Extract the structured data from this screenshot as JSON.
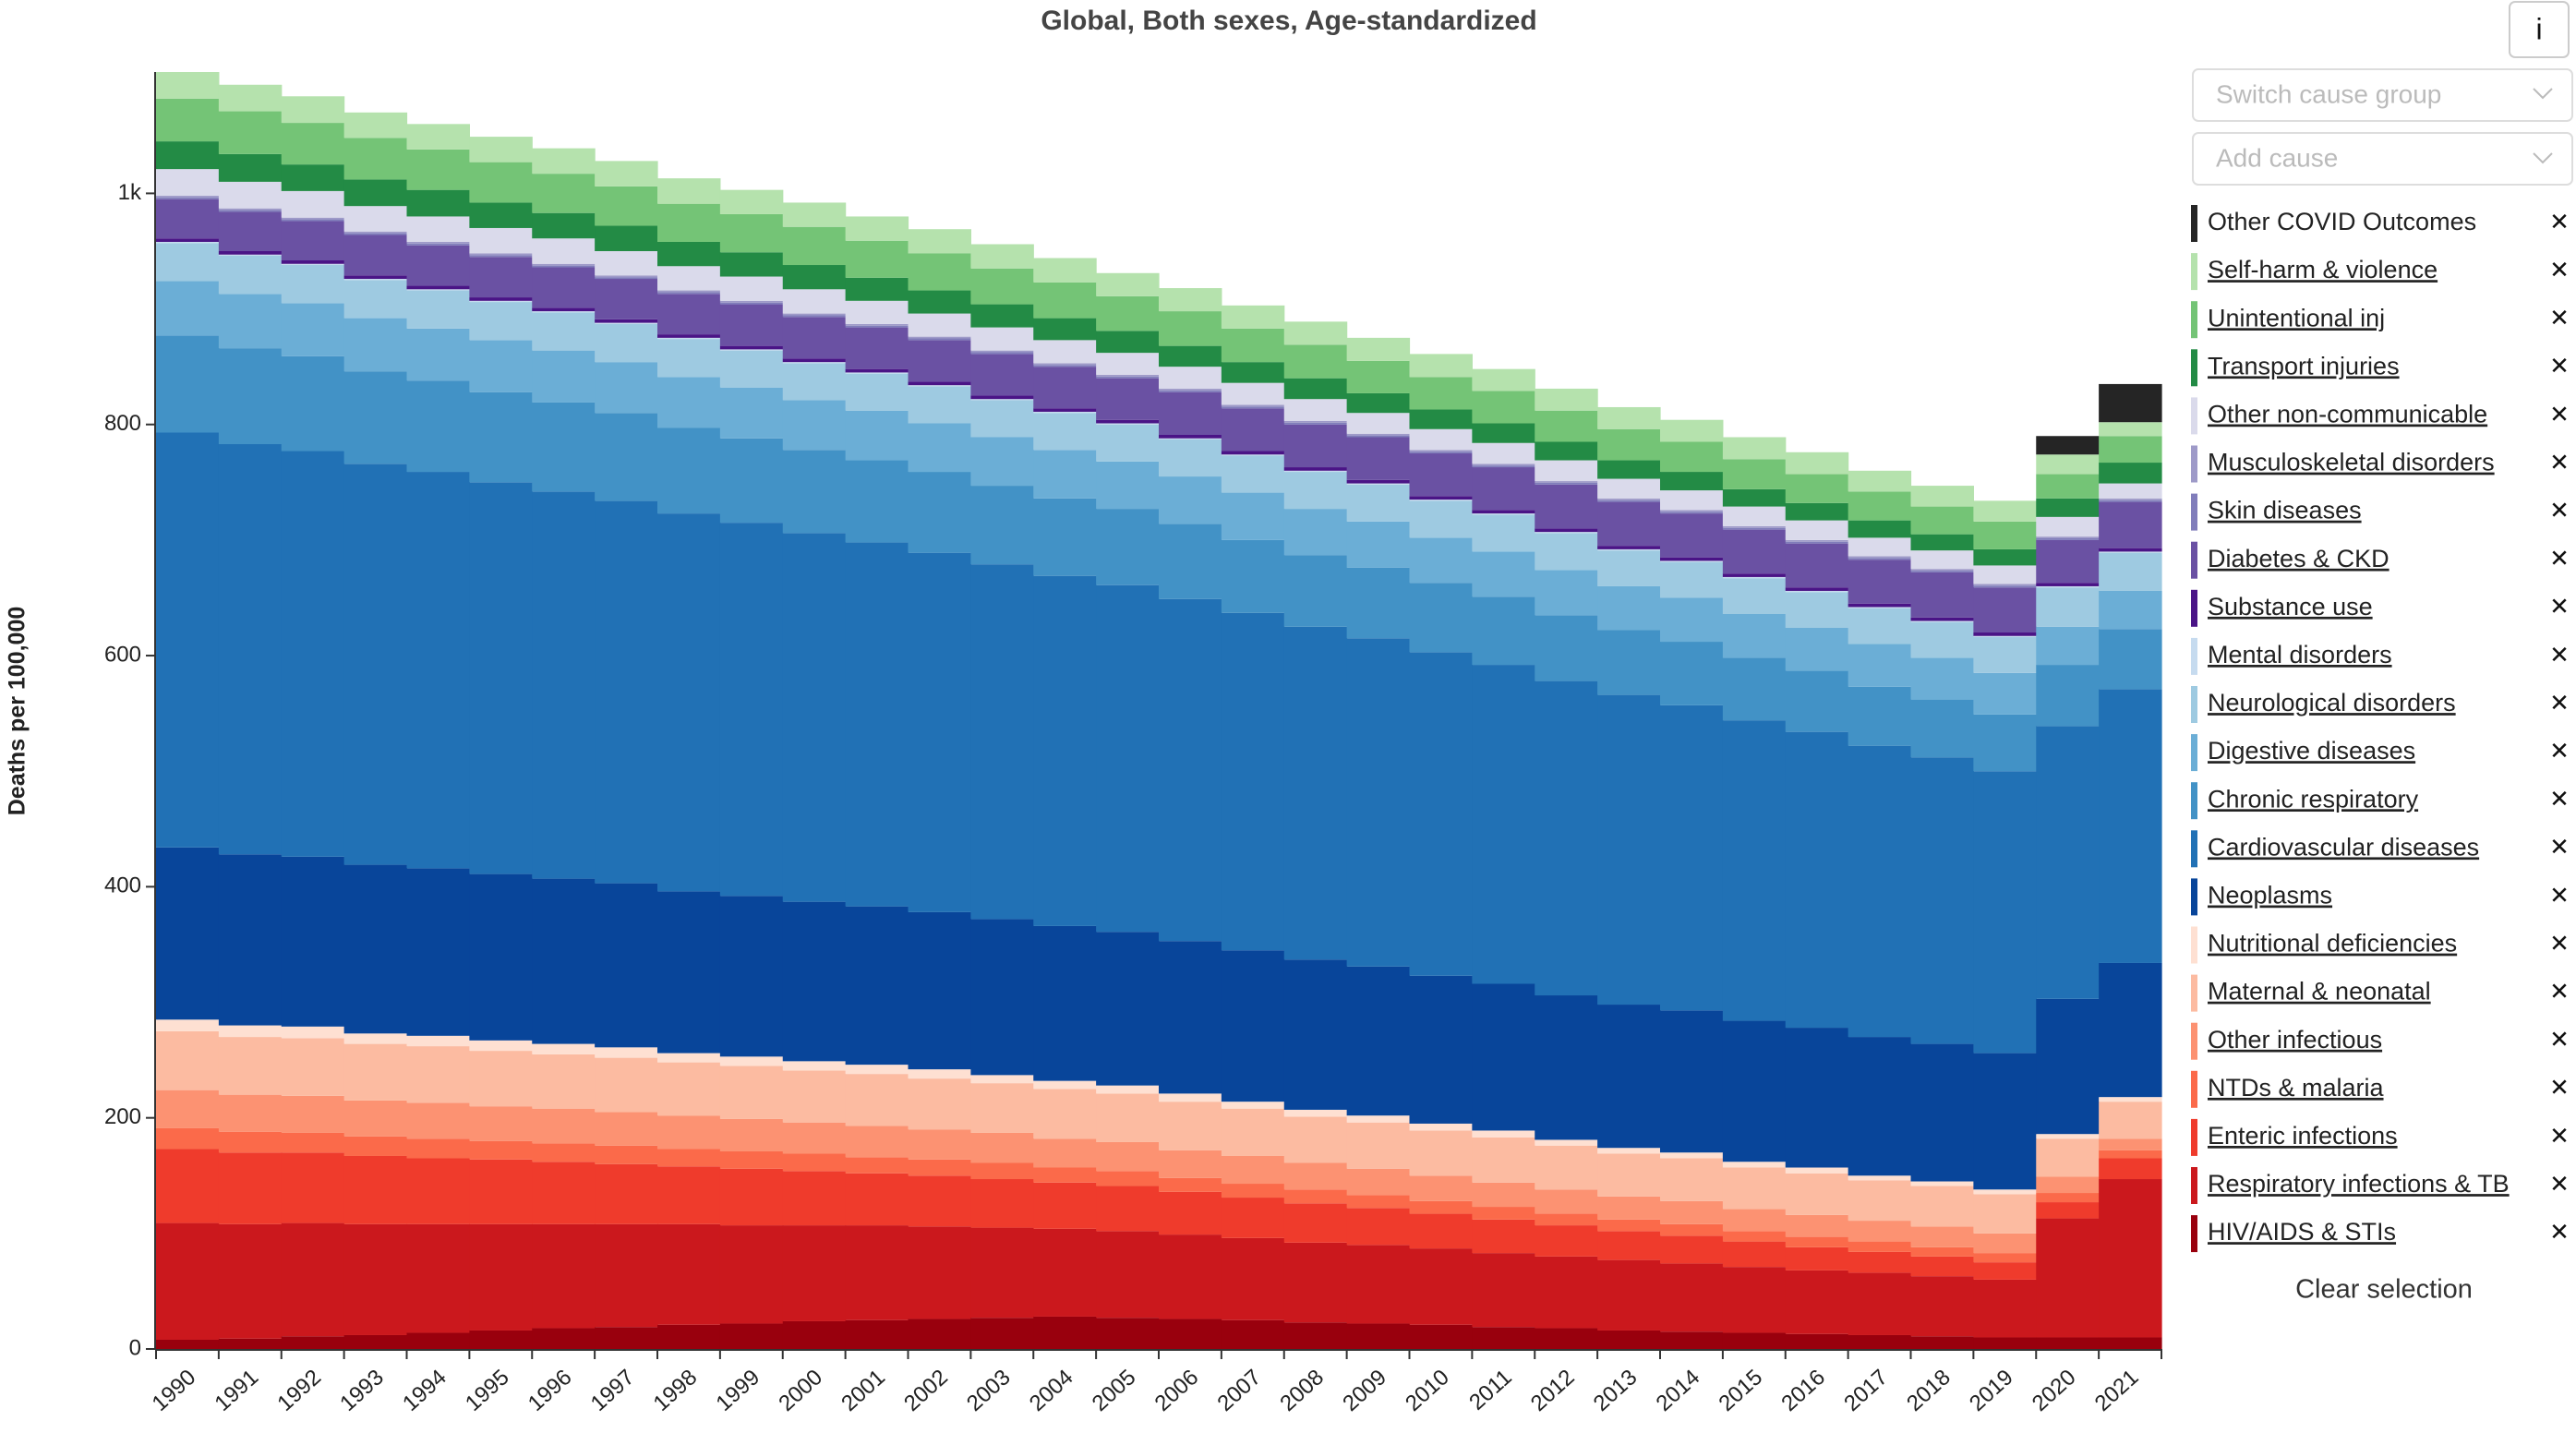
{
  "chart_data": {
    "type": "stacked-step-area",
    "title": "Global, Both sexes, Age-standardized",
    "y_label": "Deaths per 100,000",
    "categories": [
      "1990",
      "1991",
      "1992",
      "1993",
      "1994",
      "1995",
      "1996",
      "1997",
      "1998",
      "1999",
      "2000",
      "2001",
      "2002",
      "2003",
      "2004",
      "2005",
      "2006",
      "2007",
      "2008",
      "2009",
      "2010",
      "2011",
      "2012",
      "2013",
      "2014",
      "2015",
      "2016",
      "2017",
      "2018",
      "2019",
      "2020",
      "2021"
    ],
    "ylim": [
      0,
      1105
    ],
    "yticks": [
      0,
      200,
      400,
      600,
      800,
      {
        "value": 1000,
        "label": "1k"
      }
    ],
    "series": [
      {
        "name": "HIV/AIDS & STIs",
        "color": "#99000d",
        "values": [
          8,
          9,
          11,
          12,
          14,
          16,
          18,
          19,
          21,
          22,
          24,
          25,
          26,
          27,
          28,
          27,
          26,
          25,
          23,
          22,
          21,
          19,
          18,
          16,
          15,
          14,
          13,
          12,
          11,
          10,
          10,
          10
        ]
      },
      {
        "name": "Respiratory infections & TB",
        "color": "#cb181d",
        "values": [
          101,
          99,
          98,
          96,
          94,
          92,
          90,
          89,
          87,
          85,
          83,
          82,
          80,
          78,
          76,
          75,
          73,
          71,
          69,
          68,
          66,
          64,
          62,
          61,
          59,
          57,
          55,
          54,
          52,
          50,
          103,
          137
        ]
      },
      {
        "name": "Enteric infections",
        "color": "#ef3b2c",
        "values": [
          64,
          62,
          61,
          59,
          57,
          56,
          54,
          52,
          50,
          49,
          47,
          45,
          44,
          42,
          40,
          39,
          37,
          35,
          34,
          32,
          30,
          29,
          27,
          25,
          24,
          22,
          20,
          18,
          17,
          15,
          14,
          18
        ]
      },
      {
        "name": "NTDs & malaria",
        "color": "#fb6a4a",
        "values": [
          18,
          18,
          17,
          17,
          17,
          16,
          16,
          16,
          15,
          15,
          15,
          14,
          14,
          14,
          13,
          13,
          12,
          12,
          12,
          11,
          11,
          11,
          10,
          10,
          10,
          9,
          9,
          9,
          8,
          8,
          8,
          7
        ]
      },
      {
        "name": "Other infectious",
        "color": "#fc9272",
        "values": [
          33,
          32,
          32,
          31,
          31,
          30,
          30,
          29,
          29,
          28,
          27,
          27,
          26,
          26,
          25,
          25,
          24,
          24,
          23,
          23,
          22,
          21,
          21,
          20,
          20,
          19,
          19,
          18,
          18,
          17,
          14,
          10
        ]
      },
      {
        "name": "Maternal & neonatal",
        "color": "#fcbba1",
        "values": [
          51,
          50,
          50,
          49,
          49,
          48,
          47,
          47,
          46,
          46,
          45,
          45,
          44,
          43,
          43,
          42,
          42,
          41,
          40,
          40,
          39,
          39,
          38,
          37,
          37,
          36,
          36,
          35,
          35,
          34,
          33,
          32
        ]
      },
      {
        "name": "Nutritional deficiencies",
        "color": "#fee0d2",
        "values": [
          10,
          10,
          10,
          9,
          9,
          9,
          9,
          9,
          8,
          8,
          8,
          8,
          8,
          7,
          7,
          7,
          7,
          6,
          6,
          6,
          6,
          6,
          5,
          5,
          5,
          5,
          5,
          4,
          4,
          4,
          4,
          4
        ]
      },
      {
        "name": "Neoplasms",
        "color": "#08459a",
        "values": [
          149,
          148,
          147,
          146,
          145,
          144,
          143,
          142,
          140,
          139,
          138,
          137,
          136,
          135,
          134,
          133,
          132,
          131,
          130,
          129,
          128,
          127,
          125,
          124,
          123,
          122,
          121,
          120,
          119,
          118,
          117,
          116
        ]
      },
      {
        "name": "Cardiovascular diseases",
        "color": "#2171b5",
        "values": [
          359,
          355,
          351,
          347,
          343,
          339,
          335,
          331,
          327,
          323,
          319,
          315,
          311,
          307,
          303,
          300,
          296,
          292,
          288,
          284,
          280,
          276,
          272,
          268,
          264,
          260,
          256,
          252,
          248,
          244,
          236,
          237
        ]
      },
      {
        "name": "Chronic respiratory",
        "color": "#4292c6",
        "values": [
          84,
          83,
          82,
          80,
          79,
          78,
          77,
          76,
          74,
          73,
          72,
          71,
          70,
          68,
          67,
          66,
          65,
          63,
          62,
          61,
          60,
          59,
          57,
          56,
          55,
          54,
          53,
          51,
          50,
          49,
          53,
          52
        ]
      },
      {
        "name": "Digestive diseases",
        "color": "#6baed6",
        "values": [
          47,
          47,
          46,
          46,
          45,
          45,
          45,
          44,
          44,
          44,
          43,
          43,
          42,
          42,
          42,
          41,
          41,
          41,
          40,
          40,
          39,
          39,
          39,
          38,
          38,
          38,
          37,
          37,
          36,
          36,
          33,
          33
        ]
      },
      {
        "name": "Neurological disorders",
        "color": "#9ecae1",
        "values": [
          33,
          33,
          33,
          33,
          33,
          33,
          33,
          33,
          33,
          32,
          32,
          32,
          32,
          32,
          32,
          32,
          32,
          32,
          32,
          32,
          32,
          32,
          32,
          31,
          31,
          31,
          31,
          31,
          31,
          31,
          34,
          33
        ]
      },
      {
        "name": "Mental disorders",
        "color": "#c6dbef",
        "values": [
          1,
          1,
          1,
          1,
          1,
          1,
          1,
          1,
          1,
          1,
          1,
          1,
          1,
          1,
          1,
          1,
          1,
          1,
          1,
          1,
          1,
          1,
          1,
          1,
          1,
          1,
          1,
          1,
          1,
          1,
          1,
          1
        ]
      },
      {
        "name": "Substance use",
        "color": "#4a1486",
        "values": [
          3,
          3,
          3,
          3,
          3,
          3,
          3,
          3,
          3,
          3,
          3,
          3,
          3,
          3,
          3,
          3,
          3,
          3,
          3,
          3,
          3,
          3,
          3,
          3,
          3,
          3,
          3,
          3,
          3,
          3,
          3,
          3
        ]
      },
      {
        "name": "Diabetes & CKD",
        "color": "#6a51a3",
        "values": [
          34,
          34,
          34,
          35,
          35,
          35,
          35,
          35,
          35,
          36,
          36,
          36,
          36,
          36,
          36,
          36,
          37,
          37,
          37,
          37,
          37,
          37,
          38,
          38,
          38,
          38,
          38,
          38,
          39,
          39,
          37,
          40
        ]
      },
      {
        "name": "Skin diseases",
        "color": "#807dba",
        "values": [
          1.5,
          1.5,
          1.5,
          1.5,
          1.5,
          1.5,
          1.5,
          1.5,
          1.5,
          1.5,
          1.5,
          1.5,
          1.5,
          1.5,
          1.5,
          1.5,
          1.5,
          1.5,
          1.5,
          1.5,
          1.5,
          1.5,
          1.5,
          1.5,
          1.5,
          1.5,
          1.5,
          1.5,
          1.5,
          1.5,
          1.5,
          1.5
        ]
      },
      {
        "name": "Musculoskeletal disorders",
        "color": "#9e9ac8",
        "values": [
          1.5,
          1.5,
          1.5,
          1.5,
          1.5,
          1.5,
          1.5,
          1.5,
          1.5,
          1.5,
          1.5,
          1.5,
          1.5,
          1.5,
          1.5,
          1.5,
          1.5,
          1.5,
          1.5,
          1.5,
          1.5,
          1.5,
          1.5,
          1.5,
          1.5,
          1.5,
          1.5,
          1.5,
          1.5,
          1.5,
          1.5,
          1.5
        ]
      },
      {
        "name": "Other non-communicable",
        "color": "#dadaeb",
        "values": [
          23,
          23,
          23,
          22,
          22,
          22,
          22,
          21,
          21,
          21,
          21,
          20,
          20,
          20,
          20,
          19,
          19,
          19,
          19,
          18,
          18,
          18,
          18,
          17,
          17,
          17,
          17,
          16,
          16,
          16,
          17,
          13
        ]
      },
      {
        "name": "Transport injuries",
        "color": "#238b45",
        "values": [
          24,
          24,
          23,
          23,
          23,
          22,
          22,
          22,
          21,
          21,
          21,
          20,
          20,
          20,
          19,
          19,
          18,
          18,
          18,
          17,
          17,
          17,
          16,
          16,
          16,
          15,
          15,
          15,
          14,
          14,
          16,
          18
        ]
      },
      {
        "name": "Unintentional inj",
        "color": "#74c476",
        "values": [
          37,
          37,
          36,
          36,
          35,
          35,
          34,
          34,
          33,
          33,
          33,
          32,
          32,
          31,
          31,
          30,
          30,
          29,
          29,
          28,
          28,
          28,
          27,
          27,
          26,
          26,
          25,
          25,
          24,
          24,
          21,
          23
        ]
      },
      {
        "name": "Self-harm & violence",
        "color": "#b5e2ad",
        "values": [
          23,
          23,
          23,
          22,
          22,
          22,
          22,
          22,
          22,
          21,
          21,
          21,
          21,
          21,
          21,
          20,
          20,
          20,
          20,
          20,
          20,
          19,
          19,
          19,
          19,
          19,
          19,
          18,
          18,
          18,
          17,
          12
        ]
      },
      {
        "name": "Other COVID Outcomes",
        "color": "#252525",
        "values": [
          0,
          0,
          0,
          0,
          0,
          0,
          0,
          0,
          0,
          0,
          0,
          0,
          0,
          0,
          0,
          0,
          0,
          0,
          0,
          0,
          0,
          0,
          0,
          0,
          0,
          0,
          0,
          0,
          0,
          0,
          16,
          33
        ]
      }
    ]
  },
  "ui": {
    "info_button": "i",
    "switch_cause_group": "Switch cause group",
    "add_cause": "Add cause",
    "remove": "✕",
    "clear_selection": "Clear selection"
  }
}
